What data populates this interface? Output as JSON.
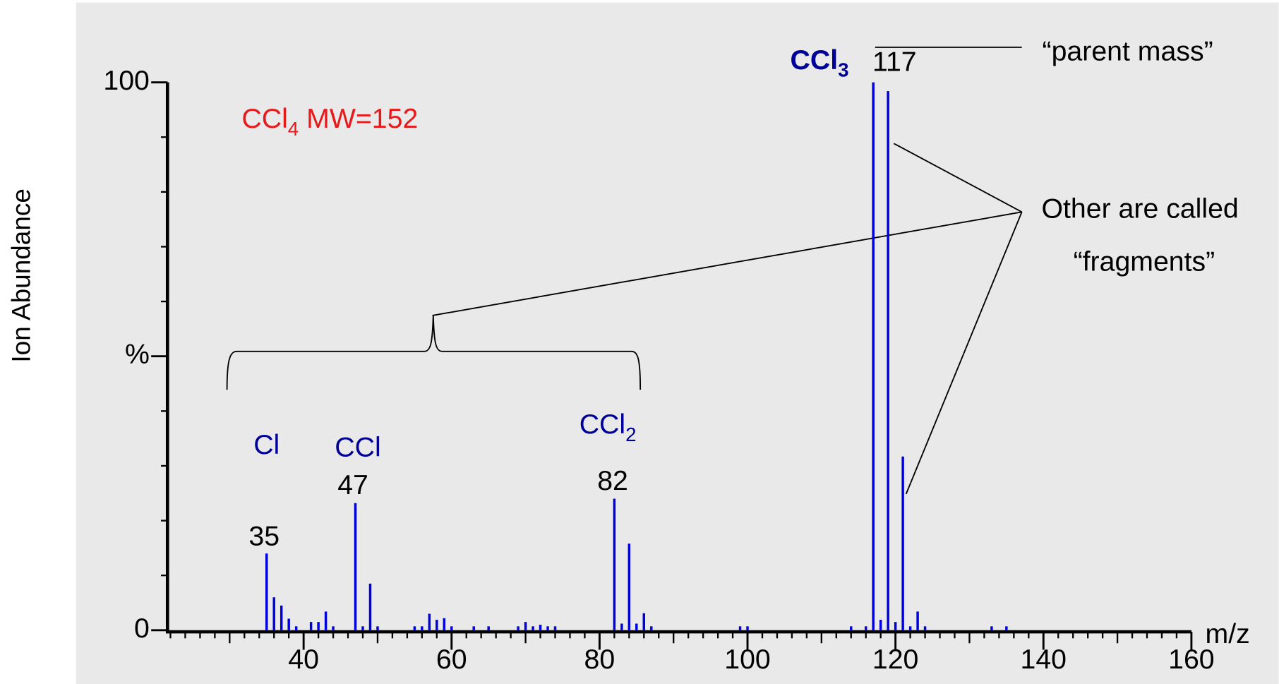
{
  "chart_data": {
    "type": "bar",
    "x_label": "m/z",
    "y_label": "Ion Abundance",
    "color": "#0000dd",
    "x": [
      35,
      36,
      37,
      38,
      39,
      41,
      42,
      43,
      44,
      47,
      48,
      49,
      50,
      55,
      56,
      57,
      58,
      59,
      60,
      63,
      65,
      69,
      70,
      71,
      72,
      73,
      74,
      82,
      83,
      84,
      85,
      86,
      87,
      99,
      100,
      114,
      116,
      117,
      118,
      119,
      120,
      121,
      122,
      123,
      124,
      133,
      135
    ],
    "values": [
      14.0,
      6.0,
      4.5,
      2.1,
      0.7,
      1.5,
      1.5,
      3.4,
      0.7,
      23.2,
      0.7,
      8.5,
      0.7,
      0.7,
      0.7,
      3.0,
      1.9,
      2.2,
      0.7,
      0.7,
      0.7,
      0.7,
      1.5,
      0.7,
      1.0,
      0.7,
      0.7,
      24.0,
      1.2,
      15.8,
      1.2,
      3.1,
      0.7,
      0.7,
      0.7,
      0.7,
      0.7,
      100,
      1.9,
      98.4,
      1.5,
      31.7,
      0.7,
      3.4,
      0.7,
      0.7,
      0.7
    ],
    "xlim": [
      21.6,
      160
    ],
    "ylim": [
      0,
      100
    ],
    "xticks": [
      40,
      60,
      80,
      100,
      120,
      140,
      160
    ],
    "yticks": [
      0,
      {
        "value": 50,
        "label": "%"
      },
      100
    ],
    "xminor_step": 2,
    "yminor_step": 10,
    "peak_labels": [
      {
        "mz": 35,
        "ion": "Cl"
      },
      {
        "mz": 47,
        "ion": "CCl"
      },
      {
        "mz": 82,
        "ion": "CCl",
        "ion_sub": "2"
      },
      {
        "mz": 117,
        "ion": "CCl",
        "ion_sub": "3"
      }
    ],
    "compound": {
      "formula": "CCl",
      "formula_sub": "4",
      "text": " MW=152"
    },
    "annotations": {
      "parent": "“parent mass”",
      "fragments_line1": "Other are called",
      "fragments_line2": "“fragments”"
    }
  }
}
